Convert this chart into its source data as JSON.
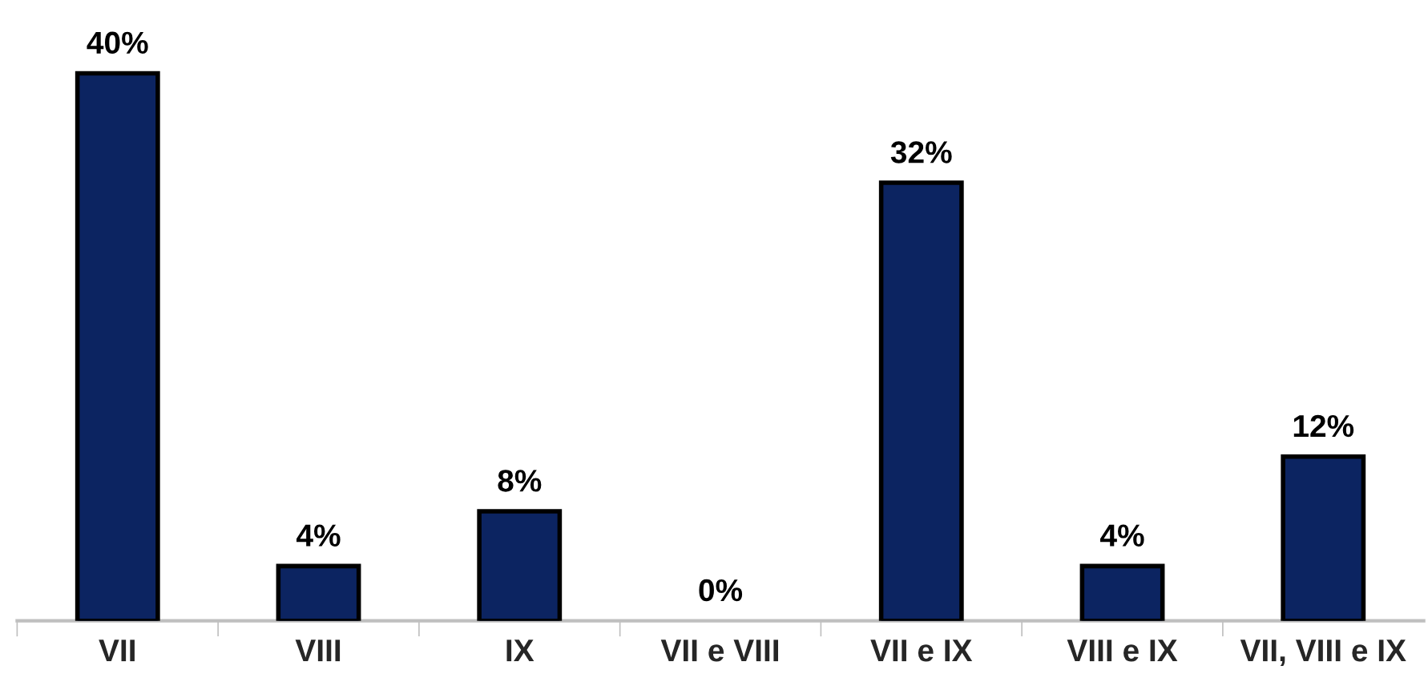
{
  "chart_data": {
    "type": "bar",
    "categories": [
      "VII",
      "VIII",
      "IX",
      "VII e VIII",
      "VII e IX",
      "VIII e IX",
      "VII, VIII e IX"
    ],
    "values": [
      40,
      4,
      8,
      0,
      32,
      4,
      12
    ],
    "value_labels": [
      "40%",
      "4%",
      "8%",
      "0%",
      "32%",
      "4%",
      "12%"
    ],
    "color": "#0c2461",
    "legend": false
  }
}
